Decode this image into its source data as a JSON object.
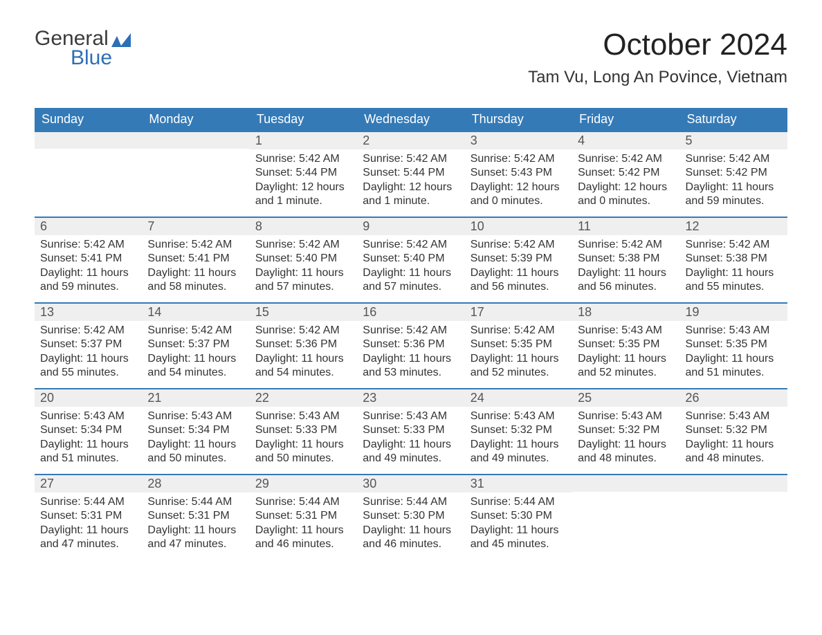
{
  "logo": {
    "word1": "General",
    "word2": "Blue",
    "flag_color": "#2d6fb6"
  },
  "title": "October 2024",
  "location": "Tam Vu, Long An Povince, Vietnam",
  "colors": {
    "header_bg": "#347ab7",
    "header_text": "#ffffff",
    "date_bar_bg": "#efefef",
    "border": "#347ab7"
  },
  "day_names": [
    "Sunday",
    "Monday",
    "Tuesday",
    "Wednesday",
    "Thursday",
    "Friday",
    "Saturday"
  ],
  "weeks": [
    [
      {
        "date": "",
        "lines": []
      },
      {
        "date": "",
        "lines": []
      },
      {
        "date": "1",
        "lines": [
          "Sunrise: 5:42 AM",
          "Sunset: 5:44 PM",
          "Daylight: 12 hours and 1 minute."
        ]
      },
      {
        "date": "2",
        "lines": [
          "Sunrise: 5:42 AM",
          "Sunset: 5:44 PM",
          "Daylight: 12 hours and 1 minute."
        ]
      },
      {
        "date": "3",
        "lines": [
          "Sunrise: 5:42 AM",
          "Sunset: 5:43 PM",
          "Daylight: 12 hours and 0 minutes."
        ]
      },
      {
        "date": "4",
        "lines": [
          "Sunrise: 5:42 AM",
          "Sunset: 5:42 PM",
          "Daylight: 12 hours and 0 minutes."
        ]
      },
      {
        "date": "5",
        "lines": [
          "Sunrise: 5:42 AM",
          "Sunset: 5:42 PM",
          "Daylight: 11 hours and 59 minutes."
        ]
      }
    ],
    [
      {
        "date": "6",
        "lines": [
          "Sunrise: 5:42 AM",
          "Sunset: 5:41 PM",
          "Daylight: 11 hours and 59 minutes."
        ]
      },
      {
        "date": "7",
        "lines": [
          "Sunrise: 5:42 AM",
          "Sunset: 5:41 PM",
          "Daylight: 11 hours and 58 minutes."
        ]
      },
      {
        "date": "8",
        "lines": [
          "Sunrise: 5:42 AM",
          "Sunset: 5:40 PM",
          "Daylight: 11 hours and 57 minutes."
        ]
      },
      {
        "date": "9",
        "lines": [
          "Sunrise: 5:42 AM",
          "Sunset: 5:40 PM",
          "Daylight: 11 hours and 57 minutes."
        ]
      },
      {
        "date": "10",
        "lines": [
          "Sunrise: 5:42 AM",
          "Sunset: 5:39 PM",
          "Daylight: 11 hours and 56 minutes."
        ]
      },
      {
        "date": "11",
        "lines": [
          "Sunrise: 5:42 AM",
          "Sunset: 5:38 PM",
          "Daylight: 11 hours and 56 minutes."
        ]
      },
      {
        "date": "12",
        "lines": [
          "Sunrise: 5:42 AM",
          "Sunset: 5:38 PM",
          "Daylight: 11 hours and 55 minutes."
        ]
      }
    ],
    [
      {
        "date": "13",
        "lines": [
          "Sunrise: 5:42 AM",
          "Sunset: 5:37 PM",
          "Daylight: 11 hours and 55 minutes."
        ]
      },
      {
        "date": "14",
        "lines": [
          "Sunrise: 5:42 AM",
          "Sunset: 5:37 PM",
          "Daylight: 11 hours and 54 minutes."
        ]
      },
      {
        "date": "15",
        "lines": [
          "Sunrise: 5:42 AM",
          "Sunset: 5:36 PM",
          "Daylight: 11 hours and 54 minutes."
        ]
      },
      {
        "date": "16",
        "lines": [
          "Sunrise: 5:42 AM",
          "Sunset: 5:36 PM",
          "Daylight: 11 hours and 53 minutes."
        ]
      },
      {
        "date": "17",
        "lines": [
          "Sunrise: 5:42 AM",
          "Sunset: 5:35 PM",
          "Daylight: 11 hours and 52 minutes."
        ]
      },
      {
        "date": "18",
        "lines": [
          "Sunrise: 5:43 AM",
          "Sunset: 5:35 PM",
          "Daylight: 11 hours and 52 minutes."
        ]
      },
      {
        "date": "19",
        "lines": [
          "Sunrise: 5:43 AM",
          "Sunset: 5:35 PM",
          "Daylight: 11 hours and 51 minutes."
        ]
      }
    ],
    [
      {
        "date": "20",
        "lines": [
          "Sunrise: 5:43 AM",
          "Sunset: 5:34 PM",
          "Daylight: 11 hours and 51 minutes."
        ]
      },
      {
        "date": "21",
        "lines": [
          "Sunrise: 5:43 AM",
          "Sunset: 5:34 PM",
          "Daylight: 11 hours and 50 minutes."
        ]
      },
      {
        "date": "22",
        "lines": [
          "Sunrise: 5:43 AM",
          "Sunset: 5:33 PM",
          "Daylight: 11 hours and 50 minutes."
        ]
      },
      {
        "date": "23",
        "lines": [
          "Sunrise: 5:43 AM",
          "Sunset: 5:33 PM",
          "Daylight: 11 hours and 49 minutes."
        ]
      },
      {
        "date": "24",
        "lines": [
          "Sunrise: 5:43 AM",
          "Sunset: 5:32 PM",
          "Daylight: 11 hours and 49 minutes."
        ]
      },
      {
        "date": "25",
        "lines": [
          "Sunrise: 5:43 AM",
          "Sunset: 5:32 PM",
          "Daylight: 11 hours and 48 minutes."
        ]
      },
      {
        "date": "26",
        "lines": [
          "Sunrise: 5:43 AM",
          "Sunset: 5:32 PM",
          "Daylight: 11 hours and 48 minutes."
        ]
      }
    ],
    [
      {
        "date": "27",
        "lines": [
          "Sunrise: 5:44 AM",
          "Sunset: 5:31 PM",
          "Daylight: 11 hours and 47 minutes."
        ]
      },
      {
        "date": "28",
        "lines": [
          "Sunrise: 5:44 AM",
          "Sunset: 5:31 PM",
          "Daylight: 11 hours and 47 minutes."
        ]
      },
      {
        "date": "29",
        "lines": [
          "Sunrise: 5:44 AM",
          "Sunset: 5:31 PM",
          "Daylight: 11 hours and 46 minutes."
        ]
      },
      {
        "date": "30",
        "lines": [
          "Sunrise: 5:44 AM",
          "Sunset: 5:30 PM",
          "Daylight: 11 hours and 46 minutes."
        ]
      },
      {
        "date": "31",
        "lines": [
          "Sunrise: 5:44 AM",
          "Sunset: 5:30 PM",
          "Daylight: 11 hours and 45 minutes."
        ]
      },
      {
        "date": "",
        "lines": []
      },
      {
        "date": "",
        "lines": []
      }
    ]
  ]
}
